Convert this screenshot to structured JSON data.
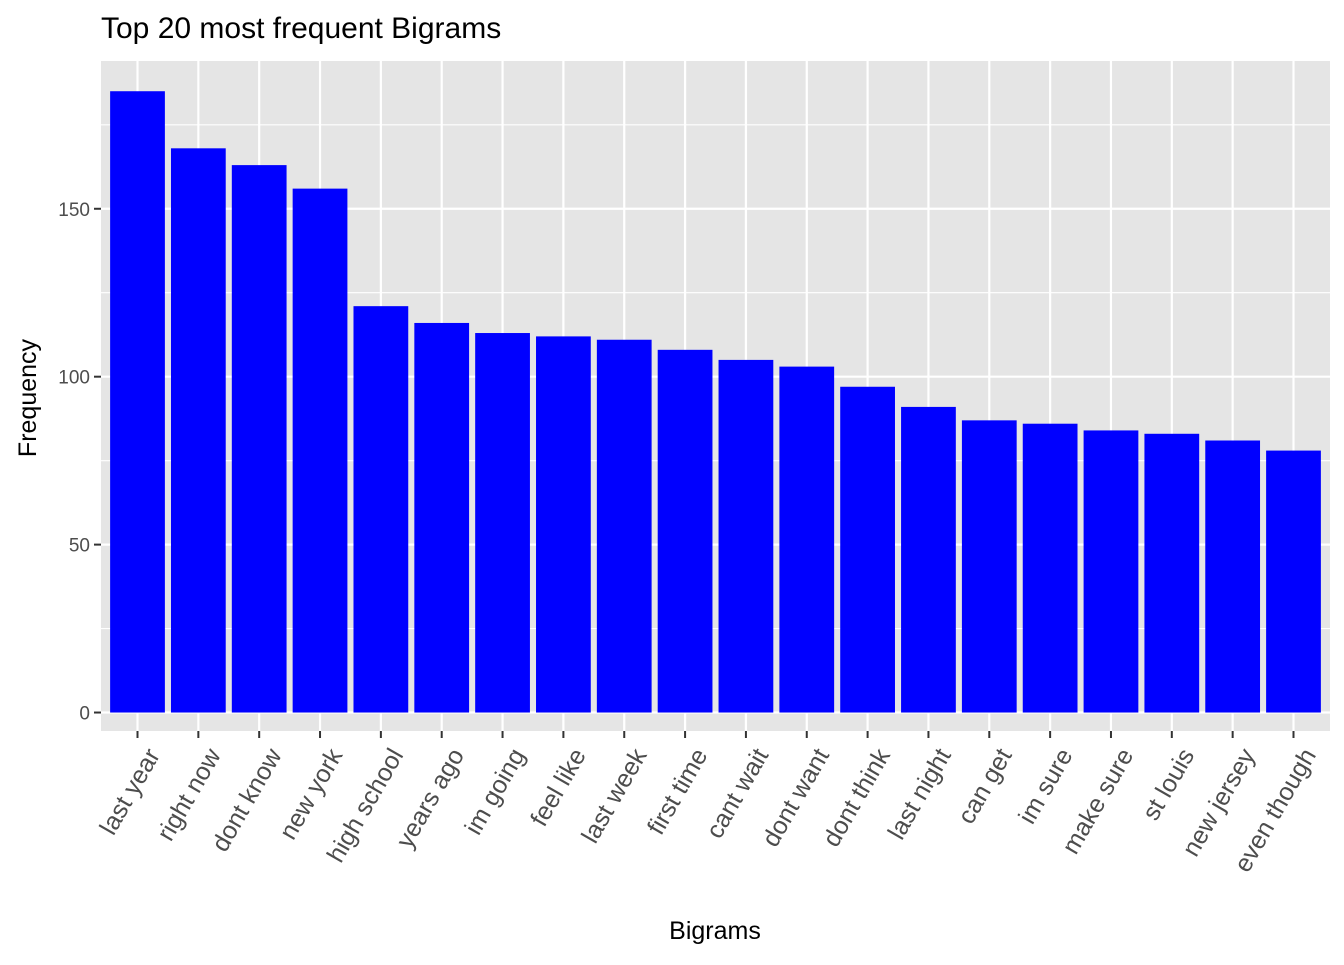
{
  "chart_data": {
    "type": "bar",
    "title": "Top 20 most frequent Bigrams",
    "xlabel": "Bigrams",
    "ylabel": "Frequency",
    "categories": [
      "last year",
      "right now",
      "dont know",
      "new york",
      "high school",
      "years ago",
      "im going",
      "feel like",
      "last week",
      "first time",
      "cant wait",
      "dont want",
      "dont think",
      "last night",
      "can get",
      "im sure",
      "make sure",
      "st louis",
      "new jersey",
      "even though"
    ],
    "values": [
      185,
      168,
      163,
      156,
      121,
      116,
      113,
      112,
      111,
      108,
      105,
      103,
      97,
      91,
      87,
      86,
      84,
      83,
      81,
      78
    ],
    "yticks": [
      0,
      50,
      100,
      150
    ],
    "ylim": [
      -5.5,
      194
    ],
    "grid": true,
    "legend": "none",
    "colors": {
      "bar": "#0000ff",
      "panel_background": "#e5e5e5",
      "grid": "#ffffff",
      "tick_text": "#4d4d4d",
      "tick_mark": "#333333"
    }
  }
}
